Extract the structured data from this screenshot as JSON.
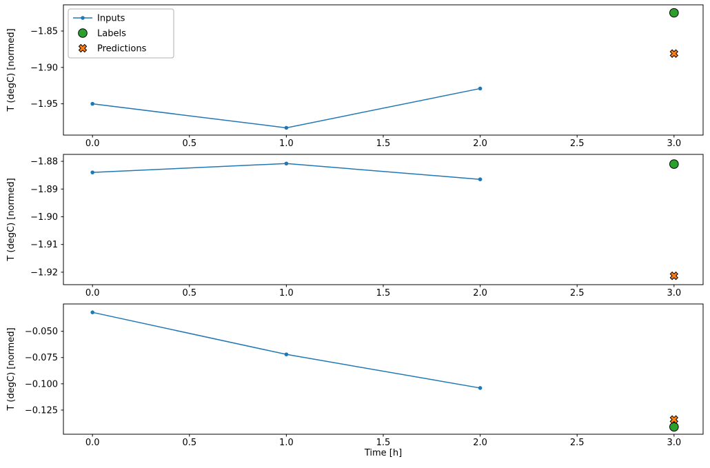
{
  "figure": {
    "xlabel": "Time [h]",
    "background": "#ffffff",
    "frame_color": "#000000",
    "legend_position": "upper-left"
  },
  "chart_data": [
    {
      "type": "line",
      "title": "",
      "ylabel": "T (degC) [normed]",
      "xlim": [
        -0.15,
        3.15
      ],
      "ylim": [
        -1.993,
        -1.814
      ],
      "grid": false,
      "xticks": {
        "values": [
          0,
          0.5,
          1,
          1.5,
          2,
          2.5,
          3
        ],
        "labels": [
          "0.0",
          "0.5",
          "1.0",
          "1.5",
          "2.0",
          "2.5",
          "3.0"
        ]
      },
      "yticks": {
        "values": [
          -1.85,
          -1.9,
          -1.95
        ],
        "labels": [
          "−1.85",
          "−1.90",
          "−1.95"
        ]
      },
      "series": [
        {
          "name": "Inputs",
          "marker": "line-dot",
          "color": "#1f77b4",
          "x": [
            0,
            1,
            2
          ],
          "y": [
            -1.95,
            -1.983,
            -1.929
          ]
        },
        {
          "name": "Labels",
          "marker": "circle",
          "color": "#2ca02c",
          "x": [
            3
          ],
          "y": [
            -1.825
          ]
        },
        {
          "name": "Predictions",
          "marker": "x",
          "color": "#ff7f0e",
          "x": [
            3
          ],
          "y": [
            -1.881
          ]
        }
      ]
    },
    {
      "type": "line",
      "title": "",
      "ylabel": "T (degC) [normed]",
      "xlim": [
        -0.15,
        3.15
      ],
      "ylim": [
        -1.9245,
        -1.8775
      ],
      "grid": false,
      "xticks": {
        "values": [
          0,
          0.5,
          1,
          1.5,
          2,
          2.5,
          3
        ],
        "labels": [
          "0.0",
          "0.5",
          "1.0",
          "1.5",
          "2.0",
          "2.5",
          "3.0"
        ]
      },
      "yticks": {
        "values": [
          -1.88,
          -1.89,
          -1.9,
          -1.91,
          -1.92
        ],
        "labels": [
          "−1.88",
          "−1.89",
          "−1.90",
          "−1.91",
          "−1.92"
        ]
      },
      "series": [
        {
          "name": "Inputs",
          "marker": "line-dot",
          "color": "#1f77b4",
          "x": [
            0,
            1,
            2
          ],
          "y": [
            -1.884,
            -1.8808,
            -1.8865
          ]
        },
        {
          "name": "Labels",
          "marker": "circle",
          "color": "#2ca02c",
          "x": [
            3
          ],
          "y": [
            -1.881
          ]
        },
        {
          "name": "Predictions",
          "marker": "x",
          "color": "#ff7f0e",
          "x": [
            3
          ],
          "y": [
            -1.9213
          ]
        }
      ]
    },
    {
      "type": "line",
      "title": "",
      "ylabel": "T (degC) [normed]",
      "xlabel": "Time [h]",
      "xlim": [
        -0.15,
        3.15
      ],
      "ylim": [
        -0.148,
        -0.024
      ],
      "grid": false,
      "xticks": {
        "values": [
          0,
          0.5,
          1,
          1.5,
          2,
          2.5,
          3
        ],
        "labels": [
          "0.0",
          "0.5",
          "1.0",
          "1.5",
          "2.0",
          "2.5",
          "3.0"
        ]
      },
      "yticks": {
        "values": [
          -0.05,
          -0.075,
          -0.1,
          -0.125
        ],
        "labels": [
          "−0.050",
          "−0.075",
          "−0.100",
          "−0.125"
        ]
      },
      "series": [
        {
          "name": "Inputs",
          "marker": "line-dot",
          "color": "#1f77b4",
          "x": [
            0,
            1,
            2
          ],
          "y": [
            -0.032,
            -0.072,
            -0.104
          ]
        },
        {
          "name": "Labels",
          "marker": "circle",
          "color": "#2ca02c",
          "x": [
            3
          ],
          "y": [
            -0.141
          ]
        },
        {
          "name": "Predictions",
          "marker": "x",
          "color": "#ff7f0e",
          "x": [
            3
          ],
          "y": [
            -0.134
          ]
        }
      ]
    }
  ]
}
